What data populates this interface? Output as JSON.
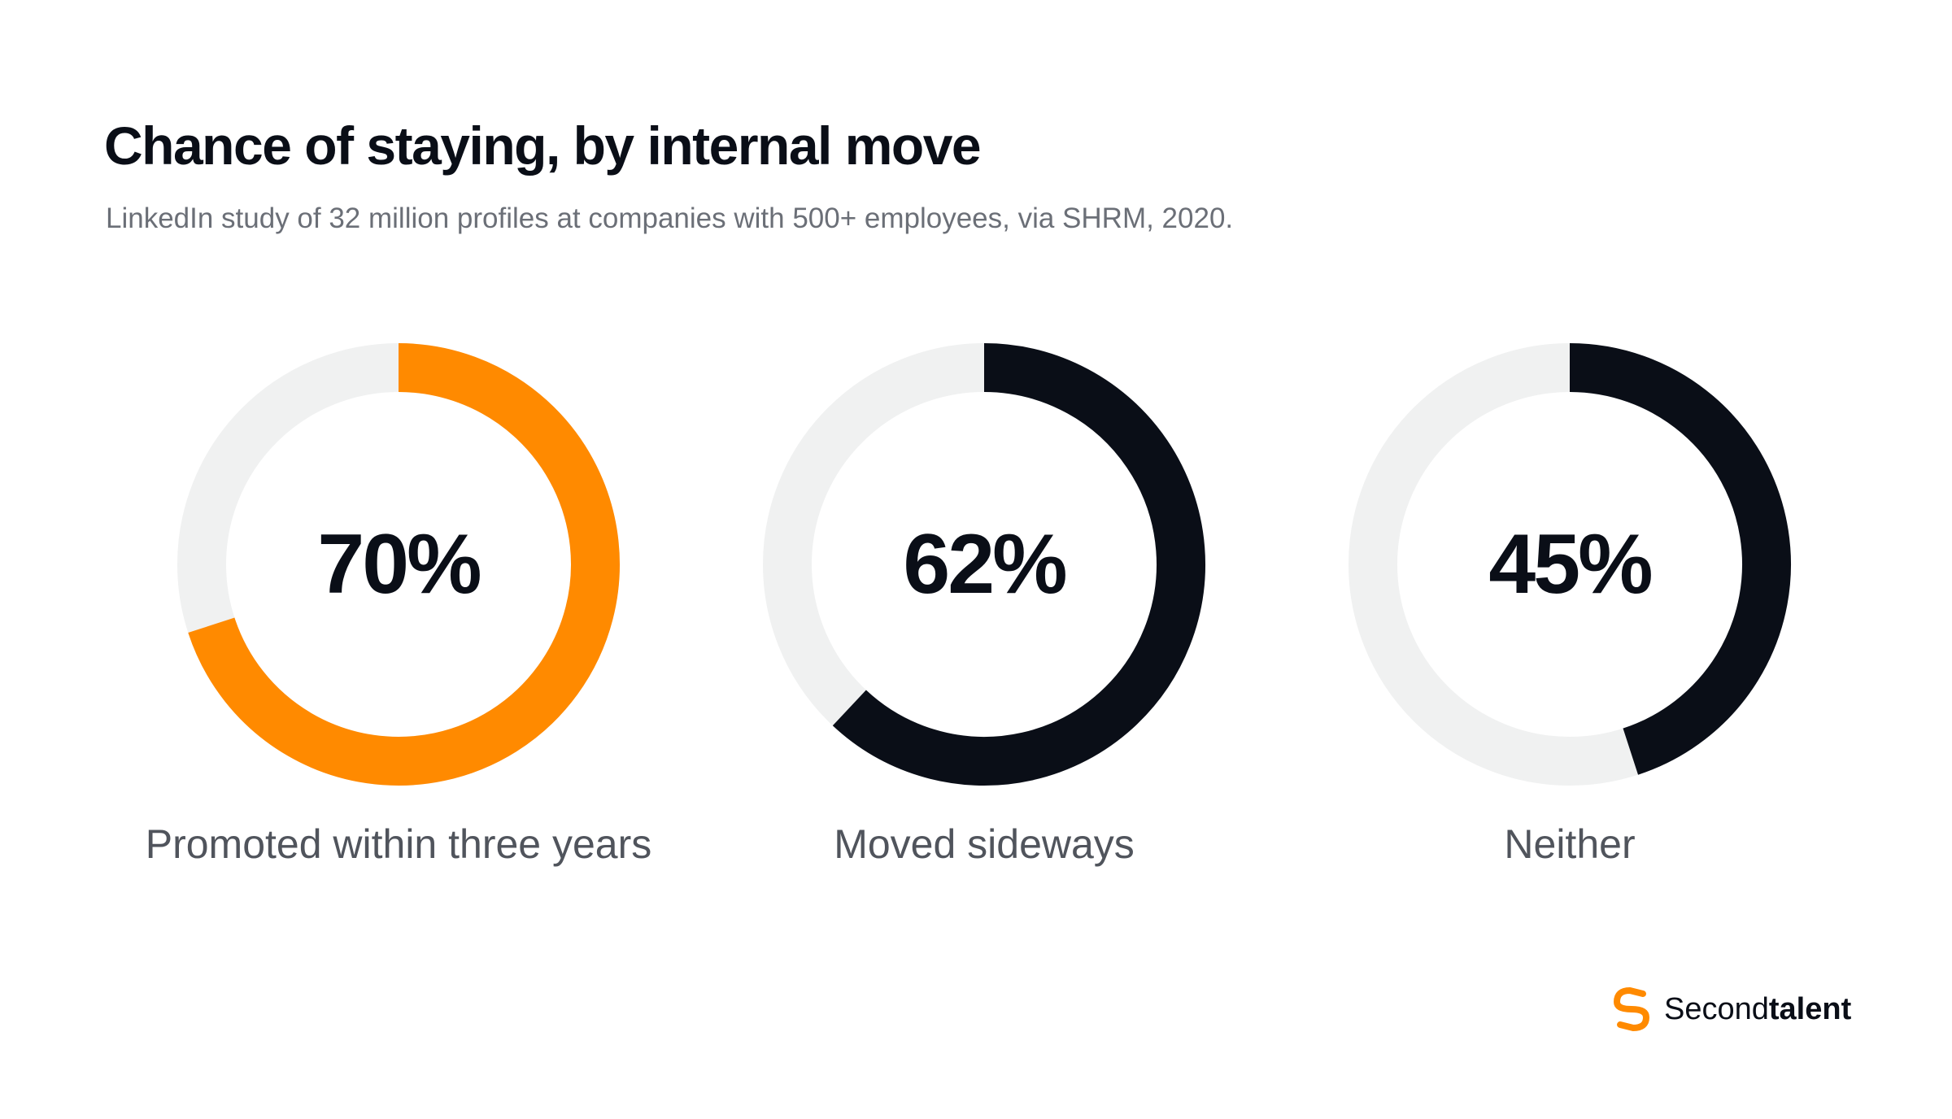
{
  "chart_data": {
    "type": "donut",
    "title": "Chance of staying, by internal move",
    "subtitle": "LinkedIn study of 32 million profiles at companies with 500+ employees, via SHRM, 2020.",
    "unit": "%",
    "track_color": "#f0f1f1",
    "items": [
      {
        "label": "Promoted within three years",
        "value": 70,
        "value_label": "70%",
        "color": "#ff8a00"
      },
      {
        "label": "Moved sideways",
        "value": 62,
        "value_label": "62%",
        "color": "#0a0e17"
      },
      {
        "label": "Neither",
        "value": 45,
        "value_label": "45%",
        "color": "#0a0e17"
      }
    ]
  },
  "brand": {
    "name_regular": "Second",
    "name_bold": "talent",
    "icon": "secondtalent-s-logo-icon",
    "color": "#ff8a00"
  }
}
